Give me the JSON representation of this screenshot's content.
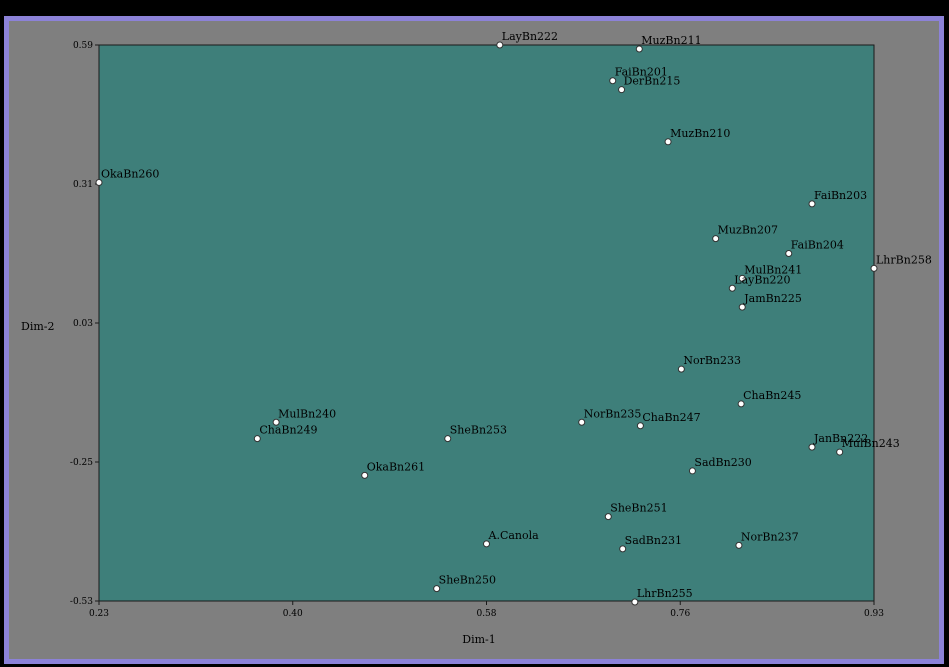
{
  "chart_data": {
    "type": "scatter",
    "xlabel": "Dim-1",
    "ylabel": "Dim-2",
    "xlim": [
      0.23,
      0.93
    ],
    "ylim": [
      -0.53,
      0.59
    ],
    "xticks": [
      "0.23",
      "0.40",
      "0.58",
      "0.76",
      "0.93"
    ],
    "yticks": [
      "0.59",
      "0.31",
      "0.03",
      "-0.25",
      "-0.53"
    ],
    "colors": {
      "plot_background": "#3e7f7a",
      "point_fill": "#ffffff",
      "frame": "#8c82d8"
    },
    "points": [
      {
        "label": "LayBn222",
        "x": 0.592,
        "y": 0.59
      },
      {
        "label": "MuzBn211",
        "x": 0.718,
        "y": 0.582
      },
      {
        "label": "FaiBn201",
        "x": 0.694,
        "y": 0.518
      },
      {
        "label": "DerBn215",
        "x": 0.702,
        "y": 0.5
      },
      {
        "label": "MuzBn210",
        "x": 0.744,
        "y": 0.395
      },
      {
        "label": "OkaBn260",
        "x": 0.23,
        "y": 0.313
      },
      {
        "label": "FaiBn203",
        "x": 0.874,
        "y": 0.27
      },
      {
        "label": "MuzBn207",
        "x": 0.787,
        "y": 0.2
      },
      {
        "label": "FaiBn204",
        "x": 0.853,
        "y": 0.17
      },
      {
        "label": "LhrBn258",
        "x": 0.93,
        "y": 0.14
      },
      {
        "label": "MulBn241",
        "x": 0.811,
        "y": 0.12
      },
      {
        "label": "LayBn220",
        "x": 0.802,
        "y": 0.1
      },
      {
        "label": "JamBn225",
        "x": 0.811,
        "y": 0.062
      },
      {
        "label": "NorBn233",
        "x": 0.756,
        "y": -0.063
      },
      {
        "label": "ChaBn245",
        "x": 0.81,
        "y": -0.133
      },
      {
        "label": "NorBn235",
        "x": 0.666,
        "y": -0.17
      },
      {
        "label": "ChaBn247",
        "x": 0.719,
        "y": -0.177
      },
      {
        "label": "MulBn240",
        "x": 0.39,
        "y": -0.17
      },
      {
        "label": "ChaBn249",
        "x": 0.373,
        "y": -0.203
      },
      {
        "label": "SheBn253",
        "x": 0.545,
        "y": -0.203
      },
      {
        "label": "JanBn222",
        "x": 0.874,
        "y": -0.22
      },
      {
        "label": "MulBn243",
        "x": 0.899,
        "y": -0.23
      },
      {
        "label": "SadBn230",
        "x": 0.766,
        "y": -0.268
      },
      {
        "label": "OkaBn261",
        "x": 0.47,
        "y": -0.277
      },
      {
        "label": "SheBn251",
        "x": 0.69,
        "y": -0.36
      },
      {
        "label": "A.Canola",
        "x": 0.58,
        "y": -0.415
      },
      {
        "label": "SadBn231",
        "x": 0.703,
        "y": -0.425
      },
      {
        "label": "NorBn237",
        "x": 0.808,
        "y": -0.418
      },
      {
        "label": "SheBn250",
        "x": 0.535,
        "y": -0.505
      },
      {
        "label": "LhrBn255",
        "x": 0.714,
        "y": -0.532
      }
    ]
  }
}
